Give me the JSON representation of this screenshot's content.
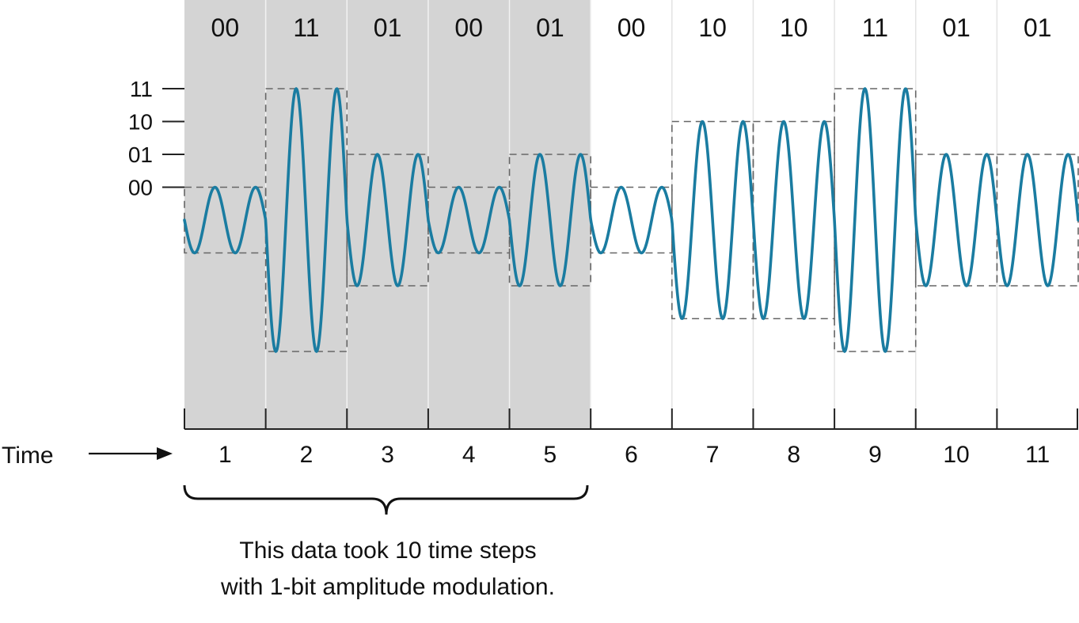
{
  "diagram": {
    "colors": {
      "wave": "#1a7ca1",
      "shade": "#d4d4d4",
      "dash": "#666666",
      "axis": "#222222",
      "divider": "#e3e3e3"
    },
    "amplitude_levels": [
      {
        "label": "11",
        "level": 4
      },
      {
        "label": "10",
        "level": 3
      },
      {
        "label": "01",
        "level": 2
      },
      {
        "label": "00",
        "level": 1
      }
    ],
    "slots": [
      {
        "time": "1",
        "bits": "00",
        "shaded": true
      },
      {
        "time": "2",
        "bits": "11",
        "shaded": true
      },
      {
        "time": "3",
        "bits": "01",
        "shaded": true
      },
      {
        "time": "4",
        "bits": "00",
        "shaded": true
      },
      {
        "time": "5",
        "bits": "01",
        "shaded": true
      },
      {
        "time": "6",
        "bits": "00",
        "shaded": false
      },
      {
        "time": "7",
        "bits": "10",
        "shaded": false
      },
      {
        "time": "8",
        "bits": "10",
        "shaded": false
      },
      {
        "time": "9",
        "bits": "11",
        "shaded": false
      },
      {
        "time": "10",
        "bits": "01",
        "shaded": false
      },
      {
        "time": "11",
        "bits": "01",
        "shaded": false
      }
    ],
    "time_label": "Time",
    "caption_line1": "This data took 10 time steps",
    "caption_line2": "with 1-bit amplitude modulation."
  }
}
